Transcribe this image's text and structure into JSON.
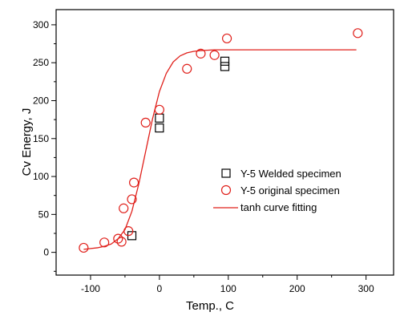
{
  "chart_data": {
    "type": "scatter",
    "title": "",
    "xlabel": "Temp., C",
    "ylabel": "Cv Energy, J",
    "xlim": [
      -150,
      340
    ],
    "ylim": [
      -30,
      320
    ],
    "x_ticks": [
      -100,
      0,
      100,
      200,
      300
    ],
    "y_ticks": [
      0,
      50,
      100,
      150,
      200,
      250,
      300
    ],
    "x_minor_ticks": [
      -50,
      50,
      150,
      250
    ],
    "y_minor_ticks": [
      -25,
      25,
      75,
      125,
      175,
      225,
      275
    ],
    "grid": false,
    "legend_position": "center-right",
    "colors": {
      "red": "#e0201b",
      "black": "#000000"
    },
    "series": [
      {
        "name": "Y-5 Welded specimen",
        "marker": "square",
        "color": "#000000",
        "points": [
          {
            "x": -40,
            "y": 22
          },
          {
            "x": 0,
            "y": 164
          },
          {
            "x": 0,
            "y": 177
          },
          {
            "x": 95,
            "y": 245
          },
          {
            "x": 95,
            "y": 252
          }
        ]
      },
      {
        "name": "Y-5 original specimen",
        "marker": "circle",
        "color": "#e0201b",
        "points": [
          {
            "x": -110,
            "y": 6
          },
          {
            "x": -80,
            "y": 13
          },
          {
            "x": -60,
            "y": 18
          },
          {
            "x": -55,
            "y": 14
          },
          {
            "x": -52,
            "y": 58
          },
          {
            "x": -45,
            "y": 28
          },
          {
            "x": -40,
            "y": 70
          },
          {
            "x": -37,
            "y": 92
          },
          {
            "x": -20,
            "y": 171
          },
          {
            "x": 0,
            "y": 188
          },
          {
            "x": 40,
            "y": 242
          },
          {
            "x": 60,
            "y": 262
          },
          {
            "x": 80,
            "y": 260
          },
          {
            "x": 98,
            "y": 282
          },
          {
            "x": 288,
            "y": 289
          }
        ]
      },
      {
        "name": "tanh curve fitting",
        "marker": "line",
        "color": "#e0201b",
        "x": [
          -110,
          -100,
          -90,
          -80,
          -70,
          -60,
          -50,
          -40,
          -30,
          -20,
          -10,
          0,
          10,
          20,
          30,
          40,
          50,
          60,
          80,
          100,
          150,
          200,
          250,
          286
        ],
        "y": [
          4,
          5,
          6,
          8,
          11,
          18,
          30,
          54,
          90,
          133,
          176,
          212,
          236,
          251,
          259,
          263,
          265,
          266,
          267,
          267,
          267,
          267,
          267,
          267
        ]
      }
    ]
  }
}
